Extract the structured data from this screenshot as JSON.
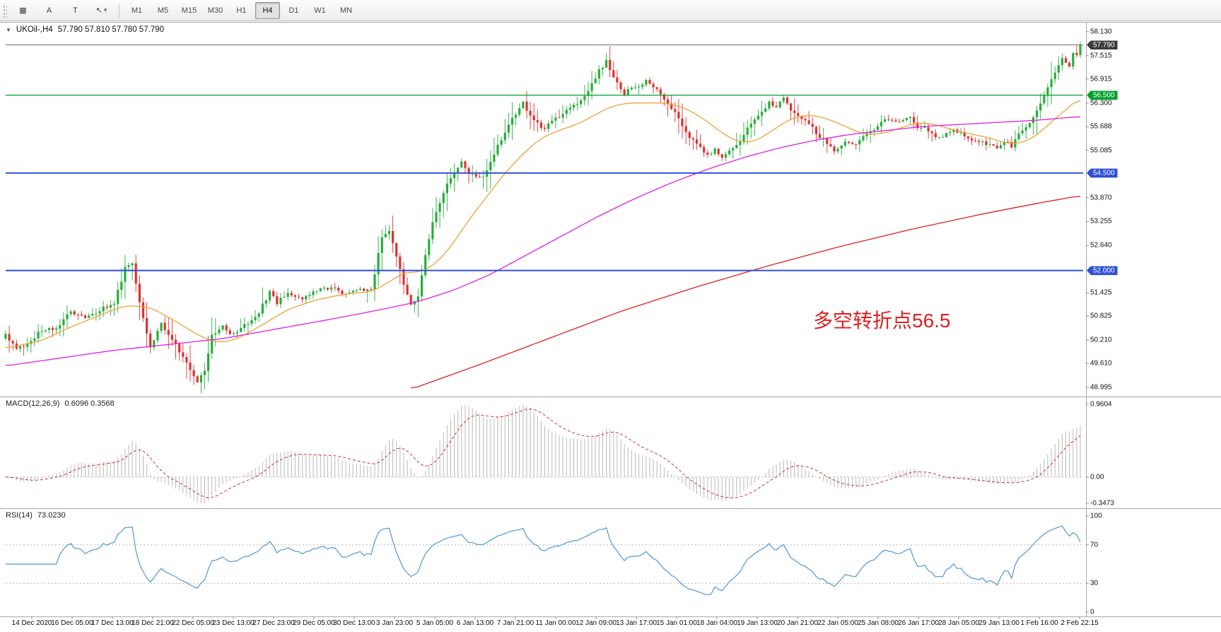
{
  "icons": {
    "collapse": "▼"
  },
  "toolbar": {
    "tools": [
      {
        "name": "charts-grid-icon",
        "glyph": "▦"
      },
      {
        "name": "letter-a-tool-button",
        "glyph": "A"
      },
      {
        "name": "text-tool-button",
        "glyph": "T"
      },
      {
        "name": "cursor-dropdown-button",
        "glyph": "↖",
        "caret": "▾"
      }
    ],
    "timeframes": [
      "M1",
      "M5",
      "M15",
      "M30",
      "H1",
      "H4",
      "D1",
      "W1",
      "MN"
    ],
    "active_timeframe": "H4"
  },
  "chart_data": {
    "type": "candlestick",
    "symbol": "UKOil-",
    "timeframe": "H4",
    "title": "UKOil-,H4",
    "header_values": "57.790 57.810 57.780 57.790",
    "current_ohlc": {
      "open": "57.790",
      "high": "57.810",
      "low": "57.780",
      "close": "57.790"
    },
    "last_close": 57.79,
    "candle_colors": {
      "up": "#27ae3b",
      "down": "#e03131"
    },
    "y_axis": {
      "range": [
        48.78,
        58.38
      ],
      "ticks": [
        "58.130",
        "57.515",
        "56.915",
        "56.300",
        "55.688",
        "55.085",
        "53.870",
        "53.255",
        "52.640",
        "51.425",
        "50.825",
        "50.210",
        "49.610",
        "48.995"
      ]
    },
    "x_labels": [
      "14 Dec 2020",
      "16 Dec 05:00",
      "17 Dec 13:00",
      "18 Dec 21:00",
      "22 Dec 05:00",
      "23 Dec 13:00",
      "27 Dec 23:00",
      "29 Dec 05:00",
      "30 Dec 13:00",
      "3 Jan 23:00",
      "5 Jan 05:00",
      "6 Jan 13:00",
      "7 Jan 21:00",
      "11 Jan 00:00",
      "12 Jan 09:00",
      "13 Jan 17:00",
      "15 Jan 01:00",
      "18 Jan 04:00",
      "19 Jan 13:00",
      "20 Jan 21:00",
      "22 Jan 05:00",
      "25 Jan 08:00",
      "26 Jan 17:00",
      "28 Jan 05:00",
      "29 Jan 13:00",
      "1 Feb 16:00",
      "2 Feb 22:15"
    ],
    "hlines": [
      {
        "price": 57.79,
        "color": "#6f6f6f",
        "width": 1,
        "tag": "57.790",
        "tag_bg": "#3c3c3c"
      },
      {
        "price": 56.5,
        "color": "#00a22e",
        "width": 1.2,
        "tag": "56.500",
        "tag_bg": "#00a22e"
      },
      {
        "price": 54.5,
        "color": "#3050d8",
        "width": 2,
        "tag": "54.500",
        "tag_bg": "#3050d8"
      },
      {
        "price": 52.0,
        "color": "#3050d8",
        "width": 2,
        "tag": "52.000",
        "tag_bg": "#3050d8"
      }
    ],
    "price_close_anchors": [
      [
        0,
        50.35
      ],
      [
        3,
        49.95
      ],
      [
        6,
        50.15
      ],
      [
        10,
        50.45
      ],
      [
        14,
        50.55
      ],
      [
        18,
        50.95
      ],
      [
        22,
        50.75
      ],
      [
        26,
        51.0
      ],
      [
        30,
        51.15
      ],
      [
        33,
        52.05
      ],
      [
        35,
        52.15
      ],
      [
        38,
        50.75
      ],
      [
        40,
        50.05
      ],
      [
        43,
        50.65
      ],
      [
        46,
        50.25
      ],
      [
        50,
        49.65
      ],
      [
        53,
        49.15
      ],
      [
        55,
        49.45
      ],
      [
        57,
        50.35
      ],
      [
        60,
        50.55
      ],
      [
        63,
        50.35
      ],
      [
        67,
        50.65
      ],
      [
        70,
        50.95
      ],
      [
        73,
        51.45
      ],
      [
        75,
        51.15
      ],
      [
        78,
        51.45
      ],
      [
        82,
        51.3
      ],
      [
        86,
        51.5
      ],
      [
        90,
        51.55
      ],
      [
        94,
        51.4
      ],
      [
        98,
        51.5
      ],
      [
        101,
        51.45
      ],
      [
        104,
        52.9
      ],
      [
        106,
        53.05
      ],
      [
        108,
        52.35
      ],
      [
        110,
        51.65
      ],
      [
        112,
        51.15
      ],
      [
        114,
        51.35
      ],
      [
        116,
        52.45
      ],
      [
        118,
        53.2
      ],
      [
        121,
        54.0
      ],
      [
        123,
        54.35
      ],
      [
        126,
        54.8
      ],
      [
        128,
        54.5
      ],
      [
        131,
        54.35
      ],
      [
        133,
        54.55
      ],
      [
        136,
        55.2
      ],
      [
        139,
        55.75
      ],
      [
        143,
        56.3
      ],
      [
        146,
        55.85
      ],
      [
        149,
        55.65
      ],
      [
        152,
        55.9
      ],
      [
        155,
        56.1
      ],
      [
        158,
        56.3
      ],
      [
        161,
        56.6
      ],
      [
        164,
        57.15
      ],
      [
        166,
        57.35
      ],
      [
        168,
        56.9
      ],
      [
        171,
        56.55
      ],
      [
        174,
        56.7
      ],
      [
        177,
        56.85
      ],
      [
        180,
        56.6
      ],
      [
        183,
        56.3
      ],
      [
        186,
        55.9
      ],
      [
        189,
        55.4
      ],
      [
        192,
        55.15
      ],
      [
        194,
        54.95
      ],
      [
        196,
        55.1
      ],
      [
        198,
        54.95
      ],
      [
        200,
        55.05
      ],
      [
        203,
        55.3
      ],
      [
        205,
        55.65
      ],
      [
        208,
        56.0
      ],
      [
        211,
        56.3
      ],
      [
        213,
        56.2
      ],
      [
        215,
        56.4
      ],
      [
        218,
        56.0
      ],
      [
        221,
        55.8
      ],
      [
        224,
        55.55
      ],
      [
        227,
        55.25
      ],
      [
        229,
        55.05
      ],
      [
        232,
        55.3
      ],
      [
        235,
        55.2
      ],
      [
        238,
        55.5
      ],
      [
        241,
        55.7
      ],
      [
        244,
        55.9
      ],
      [
        247,
        55.8
      ],
      [
        250,
        55.95
      ],
      [
        252,
        55.7
      ],
      [
        255,
        55.6
      ],
      [
        258,
        55.4
      ],
      [
        261,
        55.6
      ],
      [
        264,
        55.5
      ],
      [
        267,
        55.35
      ],
      [
        270,
        55.3
      ],
      [
        274,
        55.1
      ],
      [
        276,
        55.3
      ],
      [
        278,
        55.2
      ],
      [
        280,
        55.5
      ],
      [
        282,
        55.7
      ],
      [
        284,
        55.95
      ],
      [
        286,
        56.3
      ],
      [
        288,
        56.7
      ],
      [
        290,
        57.1
      ],
      [
        292,
        57.4
      ],
      [
        294,
        57.25
      ],
      [
        295,
        57.6
      ],
      [
        296,
        57.5
      ],
      [
        297,
        57.79
      ]
    ],
    "moving_averages": [
      {
        "name": "ma-fast-orange",
        "color": "#eea236",
        "anchors": [
          [
            0,
            50.0
          ],
          [
            10,
            50.2
          ],
          [
            18,
            50.55
          ],
          [
            26,
            50.85
          ],
          [
            33,
            51.1
          ],
          [
            40,
            51.05
          ],
          [
            46,
            50.75
          ],
          [
            53,
            50.35
          ],
          [
            58,
            50.15
          ],
          [
            63,
            50.2
          ],
          [
            70,
            50.55
          ],
          [
            78,
            51.0
          ],
          [
            86,
            51.25
          ],
          [
            94,
            51.4
          ],
          [
            101,
            51.45
          ],
          [
            106,
            51.7
          ],
          [
            110,
            51.95
          ],
          [
            114,
            51.95
          ],
          [
            118,
            52.1
          ],
          [
            123,
            52.6
          ],
          [
            128,
            53.3
          ],
          [
            133,
            53.9
          ],
          [
            138,
            54.5
          ],
          [
            143,
            55.0
          ],
          [
            148,
            55.4
          ],
          [
            153,
            55.6
          ],
          [
            158,
            55.75
          ],
          [
            163,
            56.0
          ],
          [
            167,
            56.2
          ],
          [
            172,
            56.3
          ],
          [
            177,
            56.3
          ],
          [
            182,
            56.3
          ],
          [
            187,
            56.2
          ],
          [
            192,
            55.95
          ],
          [
            197,
            55.6
          ],
          [
            202,
            55.3
          ],
          [
            207,
            55.3
          ],
          [
            212,
            55.6
          ],
          [
            217,
            55.9
          ],
          [
            222,
            56.0
          ],
          [
            227,
            55.9
          ],
          [
            232,
            55.7
          ],
          [
            237,
            55.5
          ],
          [
            242,
            55.5
          ],
          [
            247,
            55.65
          ],
          [
            252,
            55.8
          ],
          [
            257,
            55.75
          ],
          [
            262,
            55.6
          ],
          [
            267,
            55.5
          ],
          [
            272,
            55.4
          ],
          [
            277,
            55.25
          ],
          [
            282,
            55.3
          ],
          [
            286,
            55.55
          ],
          [
            290,
            55.9
          ],
          [
            294,
            56.2
          ],
          [
            297,
            56.45
          ]
        ]
      },
      {
        "name": "ma-mid-magenta",
        "color": "#e020e0",
        "anchors": [
          [
            0,
            49.55
          ],
          [
            15,
            49.75
          ],
          [
            30,
            49.95
          ],
          [
            45,
            50.1
          ],
          [
            60,
            50.25
          ],
          [
            75,
            50.5
          ],
          [
            90,
            50.75
          ],
          [
            104,
            51.0
          ],
          [
            114,
            51.2
          ],
          [
            124,
            51.5
          ],
          [
            134,
            51.9
          ],
          [
            144,
            52.4
          ],
          [
            154,
            52.9
          ],
          [
            164,
            53.4
          ],
          [
            174,
            53.85
          ],
          [
            184,
            54.25
          ],
          [
            194,
            54.6
          ],
          [
            204,
            54.9
          ],
          [
            214,
            55.15
          ],
          [
            224,
            55.35
          ],
          [
            234,
            55.5
          ],
          [
            244,
            55.6
          ],
          [
            254,
            55.7
          ],
          [
            264,
            55.75
          ],
          [
            274,
            55.8
          ],
          [
            284,
            55.85
          ],
          [
            297,
            55.95
          ]
        ]
      },
      {
        "name": "ma-slow-red",
        "color": "#e02020",
        "anchors": [
          [
            112,
            48.95
          ],
          [
            130,
            49.55
          ],
          [
            150,
            50.25
          ],
          [
            170,
            50.95
          ],
          [
            190,
            51.55
          ],
          [
            210,
            52.1
          ],
          [
            230,
            52.6
          ],
          [
            250,
            53.05
          ],
          [
            270,
            53.45
          ],
          [
            285,
            53.72
          ],
          [
            297,
            53.92
          ]
        ]
      }
    ],
    "macd": {
      "label": "MACD(12,26,9)",
      "params": [
        12,
        26,
        9
      ],
      "values_text": "0.6096 0.3568",
      "value_main": "0.6096",
      "value_signal": "0.3568",
      "axis_max": 0.9604,
      "axis_min": -0.3473,
      "axis_labels": [
        "0.9604",
        "0.00",
        "-0.3473"
      ],
      "histogram_color": "#b9b9b9",
      "signal_color": "#d03030"
    },
    "rsi": {
      "label": "RSI(14)",
      "period": 14,
      "value": "73.0230",
      "last_value": 73.02,
      "levels": [
        70,
        30
      ],
      "axis_labels": [
        "100",
        "70",
        "30",
        "0"
      ],
      "line_color": "#4f96d8"
    },
    "annotation": {
      "text": "多空转折点56.5",
      "color": "#e01f1f"
    }
  }
}
